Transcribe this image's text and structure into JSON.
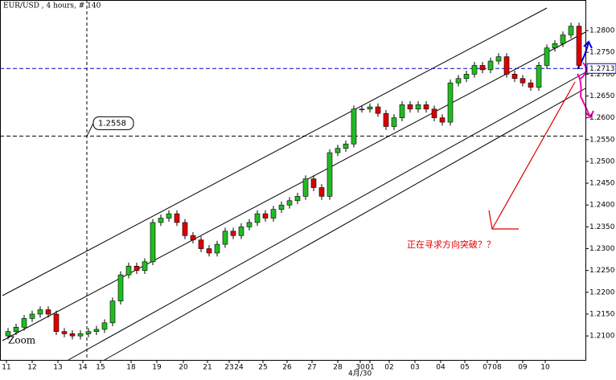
{
  "chart_data": {
    "type": "candlestick",
    "title": "EUR/USD , 4 hours, # 140",
    "zoom_label": "Zoom",
    "x_sublabel": "4月/30",
    "annotation": "正在寻求方向突破？？",
    "up_color": "#22bb22",
    "down_color": "#dd0000",
    "xlim": [
      -1,
      71.8
    ],
    "ylim": [
      1.2045,
      1.287
    ],
    "xticks": [
      {
        "value": -0.2,
        "label": "11"
      },
      {
        "value": 3,
        "label": "12"
      },
      {
        "value": 6.2,
        "label": "13"
      },
      {
        "value": 9.3,
        "label": "14"
      },
      {
        "value": 11.5,
        "label": "15"
      },
      {
        "value": 15.3,
        "label": "18"
      },
      {
        "value": 18.5,
        "label": "19"
      },
      {
        "value": 21.8,
        "label": "20"
      },
      {
        "value": 24.8,
        "label": "21"
      },
      {
        "value": 27.5,
        "label": "23"
      },
      {
        "value": 28.7,
        "label": "24"
      },
      {
        "value": 31.7,
        "label": "25"
      },
      {
        "value": 34.7,
        "label": "26"
      },
      {
        "value": 37.8,
        "label": "27"
      },
      {
        "value": 41,
        "label": "28"
      },
      {
        "value": 43.8,
        "label": "30"
      },
      {
        "value": 45,
        "label": "01"
      },
      {
        "value": 47.4,
        "label": "02"
      },
      {
        "value": 50.6,
        "label": "03"
      },
      {
        "value": 53.8,
        "label": "04"
      },
      {
        "value": 56.8,
        "label": "05"
      },
      {
        "value": 59.6,
        "label": "07"
      },
      {
        "value": 60.8,
        "label": "08"
      },
      {
        "value": 64,
        "label": "09"
      },
      {
        "value": 66.8,
        "label": "10"
      }
    ],
    "yticks": [
      {
        "value": 1.21,
        "label": "1.2100"
      },
      {
        "value": 1.215,
        "label": "1.2150"
      },
      {
        "value": 1.22,
        "label": "1.2200"
      },
      {
        "value": 1.225,
        "label": "1.2250"
      },
      {
        "value": 1.23,
        "label": "1.2300"
      },
      {
        "value": 1.235,
        "label": "1.2350"
      },
      {
        "value": 1.24,
        "label": "1.2400"
      },
      {
        "value": 1.245,
        "label": "1.2450"
      },
      {
        "value": 1.25,
        "label": "1.2500"
      },
      {
        "value": 1.255,
        "label": "1.2550"
      },
      {
        "value": 1.26,
        "label": "1.2600"
      },
      {
        "value": 1.265,
        "label": "1.2650"
      },
      {
        "value": 1.27,
        "label": "1.2700"
      },
      {
        "value": 1.275,
        "label": "1.2750"
      },
      {
        "value": 1.28,
        "label": "1.2800"
      }
    ],
    "hlines": [
      {
        "value": 1.2713,
        "label": "1.2713",
        "color": "#0000cc"
      },
      {
        "value": 1.2558,
        "label": "1.2558",
        "color": "#000000"
      }
    ],
    "crosshair_x": 9.8,
    "open": [
      1.21,
      1.211,
      1.212,
      1.214,
      1.215,
      1.216,
      1.215,
      1.211,
      1.2105,
      1.21,
      1.2105,
      1.211,
      1.2115,
      1.213,
      1.218,
      1.224,
      1.226,
      1.225,
      1.227,
      1.236,
      1.237,
      1.238,
      1.236,
      1.233,
      1.232,
      1.23,
      1.229,
      1.231,
      1.234,
      1.233,
      1.235,
      1.236,
      1.238,
      1.237,
      1.239,
      1.24,
      1.241,
      1.242,
      1.246,
      1.244,
      1.242,
      1.252,
      1.253,
      1.254,
      1.262,
      1.262,
      1.2625,
      1.261,
      1.258,
      1.26,
      1.263,
      1.262,
      1.263,
      1.262,
      1.26,
      1.259,
      1.268,
      1.269,
      1.27,
      1.272,
      1.271,
      1.273,
      1.274,
      1.27,
      1.269,
      1.268,
      1.267,
      1.272,
      1.276,
      1.277,
      1.279,
      1.281
    ],
    "high": [
      1.2118,
      1.2128,
      1.2148,
      1.2158,
      1.2168,
      1.2168,
      1.2158,
      1.2118,
      1.2113,
      1.2113,
      1.2118,
      1.2123,
      1.2138,
      1.2188,
      1.2248,
      1.2268,
      1.2268,
      1.2278,
      1.2368,
      1.2378,
      1.2388,
      1.2388,
      1.2368,
      1.2338,
      1.2328,
      1.2308,
      1.2318,
      1.2348,
      1.2348,
      1.2358,
      1.2368,
      1.2388,
      1.2388,
      1.2398,
      1.2408,
      1.2418,
      1.2428,
      1.2468,
      1.2468,
      1.2448,
      1.2528,
      1.2538,
      1.2548,
      1.2628,
      1.2628,
      1.2633,
      1.2633,
      1.2618,
      1.2608,
      1.2638,
      1.2638,
      1.2638,
      1.2638,
      1.2628,
      1.2608,
      1.2688,
      1.2698,
      1.2708,
      1.2728,
      1.2728,
      1.2738,
      1.2748,
      1.2748,
      1.2708,
      1.2698,
      1.2688,
      1.2728,
      1.2768,
      1.2778,
      1.2798,
      1.2818,
      1.2818
    ],
    "low": [
      1.2092,
      1.2102,
      1.2112,
      1.2132,
      1.2142,
      1.2142,
      1.2102,
      1.2097,
      1.2092,
      1.2092,
      1.2097,
      1.2102,
      1.2107,
      1.2122,
      1.2172,
      1.2232,
      1.2242,
      1.2242,
      1.2262,
      1.2352,
      1.2362,
      1.2352,
      1.2322,
      1.2312,
      1.2292,
      1.2282,
      1.2282,
      1.2302,
      1.2322,
      1.2322,
      1.2342,
      1.2352,
      1.2362,
      1.2362,
      1.2382,
      1.2392,
      1.2402,
      1.2412,
      1.2432,
      1.2412,
      1.2412,
      1.2512,
      1.2522,
      1.2532,
      1.2612,
      1.2612,
      1.2602,
      1.2572,
      1.2572,
      1.2592,
      1.2612,
      1.2612,
      1.2612,
      1.2592,
      1.2582,
      1.2582,
      1.2672,
      1.2682,
      1.2692,
      1.2702,
      1.2702,
      1.2722,
      1.2692,
      1.2682,
      1.2672,
      1.2662,
      1.2662,
      1.2712,
      1.2752,
      1.2762,
      1.2782,
      1.2712
    ],
    "close": [
      1.211,
      1.212,
      1.214,
      1.215,
      1.216,
      1.215,
      1.211,
      1.2105,
      1.21,
      1.2105,
      1.211,
      1.2115,
      1.213,
      1.218,
      1.224,
      1.226,
      1.225,
      1.227,
      1.236,
      1.237,
      1.238,
      1.236,
      1.233,
      1.232,
      1.23,
      1.229,
      1.231,
      1.234,
      1.233,
      1.235,
      1.236,
      1.238,
      1.237,
      1.239,
      1.24,
      1.241,
      1.242,
      1.246,
      1.244,
      1.242,
      1.252,
      1.253,
      1.254,
      1.262,
      1.262,
      1.2625,
      1.261,
      1.258,
      1.26,
      1.263,
      1.262,
      1.263,
      1.262,
      1.26,
      1.259,
      1.268,
      1.269,
      1.27,
      1.272,
      1.271,
      1.273,
      1.274,
      1.27,
      1.269,
      1.268,
      1.267,
      1.272,
      1.276,
      1.277,
      1.279,
      1.281,
      1.272
    ]
  }
}
